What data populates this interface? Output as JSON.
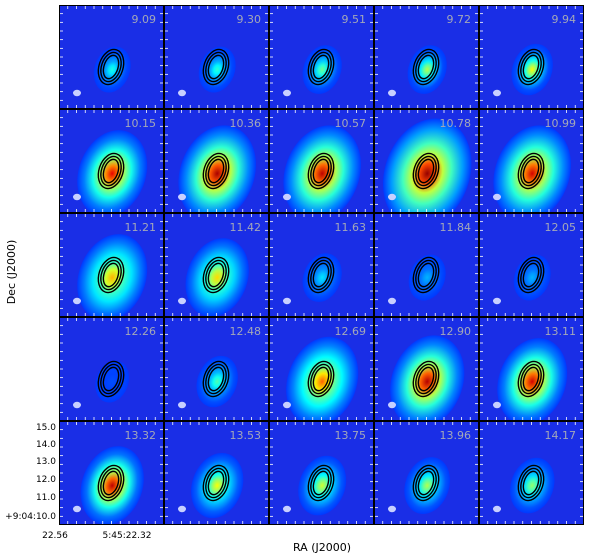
{
  "chart_data": {
    "type": "heatmap",
    "layout": {
      "rows": 5,
      "cols": 5
    },
    "xlabel": "RA (J2000)",
    "ylabel": "Dec (J2000)",
    "x_tick_labels": [
      "22.56",
      "5:45:22.32"
    ],
    "y_tick_labels": [
      "15.0",
      "14.0",
      "13.0",
      "12.0",
      "11.0",
      "+9:04:10.0"
    ],
    "colors": {
      "background": "#1a2ee6",
      "panel_border": "#000000",
      "contour": "#000000",
      "beam": "#c8d0ff",
      "label": "#a4a8b8"
    },
    "panels": [
      {
        "label": "9.09",
        "peak": 0.4,
        "halo": 0.08
      },
      {
        "label": "9.30",
        "peak": 0.42,
        "halo": 0.08
      },
      {
        "label": "9.51",
        "peak": 0.48,
        "halo": 0.1
      },
      {
        "label": "9.72",
        "peak": 0.55,
        "halo": 0.1
      },
      {
        "label": "9.94",
        "peak": 0.62,
        "halo": 0.12
      },
      {
        "label": "10.15",
        "peak": 0.9,
        "halo": 0.38
      },
      {
        "label": "10.36",
        "peak": 0.96,
        "halo": 0.45
      },
      {
        "label": "10.57",
        "peak": 0.94,
        "halo": 0.45
      },
      {
        "label": "10.78",
        "peak": 0.98,
        "halo": 0.55
      },
      {
        "label": "10.99",
        "peak": 0.92,
        "halo": 0.45
      },
      {
        "label": "11.21",
        "peak": 0.7,
        "halo": 0.38
      },
      {
        "label": "11.42",
        "peak": 0.66,
        "halo": 0.32
      },
      {
        "label": "11.63",
        "peak": 0.35,
        "halo": 0.1
      },
      {
        "label": "11.84",
        "peak": 0.3,
        "halo": 0.08
      },
      {
        "label": "12.05",
        "peak": 0.3,
        "halo": 0.08
      },
      {
        "label": "12.26",
        "peak": 0.2,
        "halo": 0.05
      },
      {
        "label": "12.48",
        "peak": 0.45,
        "halo": 0.12
      },
      {
        "label": "12.69",
        "peak": 0.78,
        "halo": 0.4
      },
      {
        "label": "12.90",
        "peak": 0.95,
        "halo": 0.42
      },
      {
        "label": "13.11",
        "peak": 0.92,
        "halo": 0.38
      },
      {
        "label": "13.32",
        "peak": 0.94,
        "halo": 0.32
      },
      {
        "label": "13.53",
        "peak": 0.62,
        "halo": 0.22
      },
      {
        "label": "13.75",
        "peak": 0.58,
        "halo": 0.18
      },
      {
        "label": "13.96",
        "peak": 0.55,
        "halo": 0.16
      },
      {
        "label": "14.17",
        "peak": 0.52,
        "halo": 0.15
      }
    ]
  }
}
